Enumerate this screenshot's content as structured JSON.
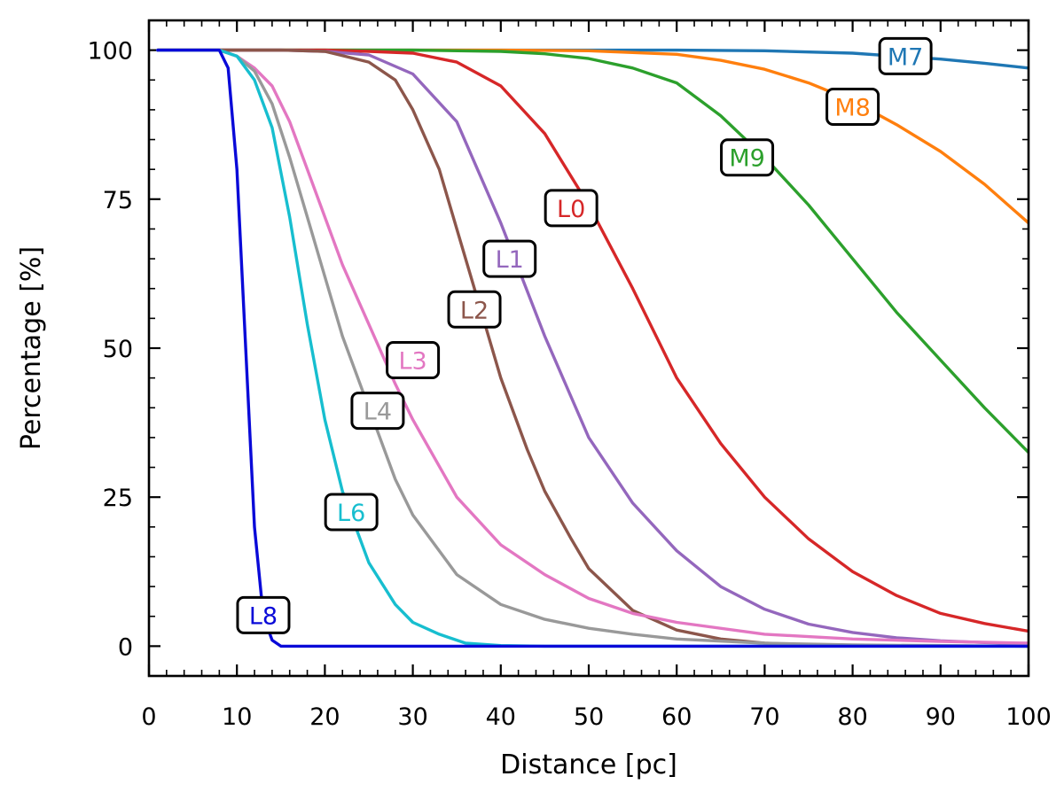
{
  "chart_data": {
    "type": "line",
    "title": "",
    "xlabel": "Distance [pc]",
    "ylabel": "Percentage [%]",
    "xlim": [
      0,
      100
    ],
    "ylim": [
      -5,
      105
    ],
    "xticks": [
      0,
      10,
      20,
      30,
      40,
      50,
      60,
      70,
      80,
      90,
      100
    ],
    "yticks": [
      0,
      25,
      50,
      75,
      100
    ],
    "xtick_labels": [
      "0",
      "10",
      "20",
      "30",
      "40",
      "50",
      "60",
      "70",
      "80",
      "90",
      "100"
    ],
    "ytick_labels": [
      "0",
      "25",
      "50",
      "75",
      "100"
    ],
    "grid": false,
    "series": [
      {
        "name": "M7",
        "color": "#1f77b4",
        "label_at": [
          86,
          99
        ],
        "points": [
          [
            1,
            100
          ],
          [
            60,
            100
          ],
          [
            70,
            99.9
          ],
          [
            80,
            99.5
          ],
          [
            85,
            99
          ],
          [
            90,
            98.5
          ],
          [
            95,
            97.8
          ],
          [
            100,
            97
          ]
        ]
      },
      {
        "name": "M8",
        "color": "#ff7f0e",
        "label_at": [
          80,
          90.5
        ],
        "points": [
          [
            1,
            100
          ],
          [
            40,
            100
          ],
          [
            50,
            99.9
          ],
          [
            60,
            99.3
          ],
          [
            65,
            98.3
          ],
          [
            70,
            96.8
          ],
          [
            75,
            94.5
          ],
          [
            80,
            91.5
          ],
          [
            85,
            87.5
          ],
          [
            90,
            83
          ],
          [
            95,
            77.5
          ],
          [
            100,
            71
          ]
        ]
      },
      {
        "name": "M9",
        "color": "#2ca02c",
        "label_at": [
          68,
          82
        ],
        "points": [
          [
            1,
            100
          ],
          [
            30,
            100
          ],
          [
            40,
            99.8
          ],
          [
            45,
            99.4
          ],
          [
            50,
            98.6
          ],
          [
            55,
            97
          ],
          [
            60,
            94.5
          ],
          [
            65,
            89
          ],
          [
            70,
            82
          ],
          [
            75,
            74
          ],
          [
            80,
            65
          ],
          [
            85,
            56
          ],
          [
            90,
            48
          ],
          [
            95,
            40
          ],
          [
            100,
            32.5
          ]
        ]
      },
      {
        "name": "L0",
        "color": "#d62728",
        "label_at": [
          48,
          73.5
        ],
        "points": [
          [
            1,
            100
          ],
          [
            20,
            100
          ],
          [
            25,
            99.8
          ],
          [
            30,
            99.5
          ],
          [
            35,
            98
          ],
          [
            40,
            94
          ],
          [
            45,
            86
          ],
          [
            50,
            74
          ],
          [
            55,
            60
          ],
          [
            60,
            45
          ],
          [
            65,
            34
          ],
          [
            70,
            25
          ],
          [
            75,
            18
          ],
          [
            80,
            12.5
          ],
          [
            85,
            8.5
          ],
          [
            90,
            5.5
          ],
          [
            95,
            3.8
          ],
          [
            100,
            2.5
          ]
        ]
      },
      {
        "name": "L1",
        "color": "#9467bd",
        "label_at": [
          41,
          65
        ],
        "points": [
          [
            1,
            100
          ],
          [
            15,
            100
          ],
          [
            20,
            99.8
          ],
          [
            25,
            99.2
          ],
          [
            30,
            96
          ],
          [
            35,
            88
          ],
          [
            40,
            71
          ],
          [
            45,
            52
          ],
          [
            50,
            35
          ],
          [
            55,
            24
          ],
          [
            60,
            16
          ],
          [
            65,
            10
          ],
          [
            70,
            6.2
          ],
          [
            75,
            3.7
          ],
          [
            80,
            2.3
          ],
          [
            85,
            1.4
          ],
          [
            90,
            0.9
          ],
          [
            95,
            0.6
          ],
          [
            100,
            0.4
          ]
        ]
      },
      {
        "name": "L2",
        "color": "#8c564b",
        "label_at": [
          37,
          56.5
        ],
        "points": [
          [
            1,
            100
          ],
          [
            15,
            100
          ],
          [
            20,
            99.8
          ],
          [
            25,
            98
          ],
          [
            28,
            95
          ],
          [
            30,
            90
          ],
          [
            33,
            80
          ],
          [
            35,
            70
          ],
          [
            38,
            55
          ],
          [
            40,
            45
          ],
          [
            43,
            33
          ],
          [
            45,
            26
          ],
          [
            48,
            18
          ],
          [
            50,
            13
          ],
          [
            55,
            6
          ],
          [
            60,
            2.7
          ],
          [
            65,
            1.2
          ],
          [
            70,
            0.5
          ],
          [
            75,
            0.2
          ],
          [
            80,
            0.1
          ],
          [
            100,
            0
          ]
        ]
      },
      {
        "name": "L3",
        "color": "#e377c2",
        "label_at": [
          30,
          48
        ],
        "points": [
          [
            1,
            100
          ],
          [
            8,
            100
          ],
          [
            10,
            99
          ],
          [
            12,
            97
          ],
          [
            14,
            94
          ],
          [
            16,
            88
          ],
          [
            18,
            80
          ],
          [
            20,
            72
          ],
          [
            22,
            64
          ],
          [
            25,
            54
          ],
          [
            28,
            44
          ],
          [
            30,
            38
          ],
          [
            35,
            25
          ],
          [
            40,
            17
          ],
          [
            45,
            12
          ],
          [
            50,
            8
          ],
          [
            55,
            5.5
          ],
          [
            60,
            4
          ],
          [
            70,
            2
          ],
          [
            80,
            1.2
          ],
          [
            90,
            0.8
          ],
          [
            100,
            0.5
          ]
        ]
      },
      {
        "name": "L4",
        "color": "#999999",
        "label_at": [
          26,
          39.5
        ],
        "points": [
          [
            1,
            100
          ],
          [
            8,
            100
          ],
          [
            10,
            99
          ],
          [
            12,
            96.5
          ],
          [
            14,
            91
          ],
          [
            16,
            82
          ],
          [
            18,
            72
          ],
          [
            20,
            62
          ],
          [
            22,
            52
          ],
          [
            25,
            40
          ],
          [
            28,
            28
          ],
          [
            30,
            22
          ],
          [
            35,
            12
          ],
          [
            40,
            7
          ],
          [
            45,
            4.5
          ],
          [
            50,
            3
          ],
          [
            55,
            2
          ],
          [
            60,
            1.2
          ],
          [
            70,
            0.5
          ],
          [
            80,
            0.2
          ],
          [
            100,
            0
          ]
        ]
      },
      {
        "name": "L6",
        "color": "#17becf",
        "label_at": [
          23,
          22.5
        ],
        "points": [
          [
            1,
            100
          ],
          [
            8,
            100
          ],
          [
            10,
            99
          ],
          [
            12,
            95
          ],
          [
            14,
            87
          ],
          [
            16,
            72
          ],
          [
            18,
            54
          ],
          [
            20,
            38
          ],
          [
            22,
            26
          ],
          [
            25,
            14
          ],
          [
            28,
            7
          ],
          [
            30,
            4
          ],
          [
            33,
            2
          ],
          [
            36,
            0.5
          ],
          [
            40,
            0.1
          ],
          [
            45,
            0
          ],
          [
            100,
            0
          ]
        ]
      },
      {
        "name": "L8",
        "color": "#0a0ad8",
        "label_at": [
          13,
          5.2
        ],
        "points": [
          [
            1,
            100
          ],
          [
            8,
            100
          ],
          [
            9,
            97
          ],
          [
            10,
            80
          ],
          [
            11,
            50
          ],
          [
            12,
            20
          ],
          [
            13,
            5
          ],
          [
            14,
            1
          ],
          [
            15,
            0
          ],
          [
            100,
            0
          ]
        ]
      }
    ]
  }
}
